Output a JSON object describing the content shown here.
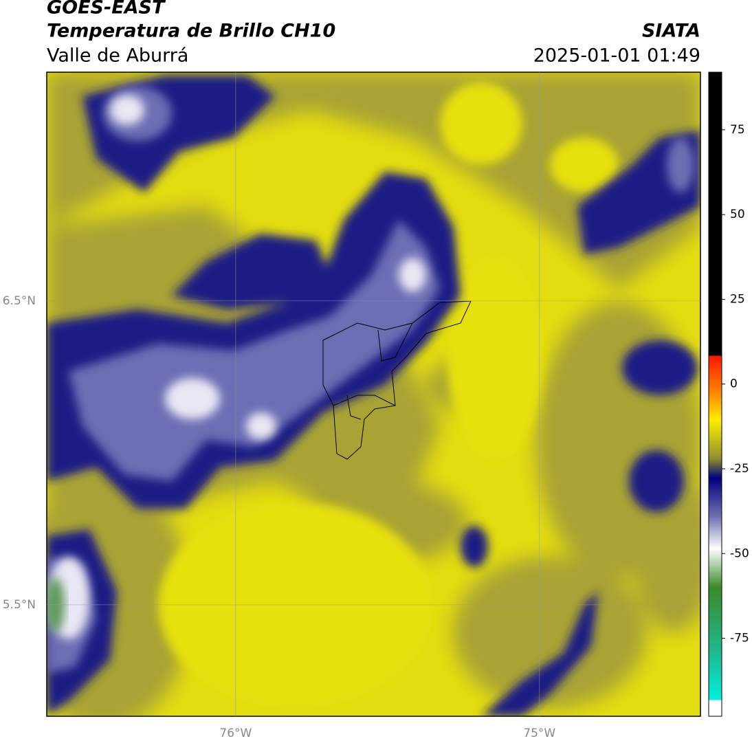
{
  "header": {
    "title": "GOES-EAST",
    "subtitle": "Temperatura de Brillo CH10",
    "region": "Valle de Aburrá",
    "source": "SIATA",
    "datetime": "2025-01-01 01:49"
  },
  "map": {
    "lat_lim": [
      5.133,
      7.253
    ],
    "lon_lim": [
      -76.622,
      -74.47
    ],
    "lat_ticks": [
      {
        "value": 6.5,
        "label": "6.5°N"
      },
      {
        "value": 5.5,
        "label": "5.5°N"
      }
    ],
    "lon_ticks": [
      {
        "value": -76,
        "label": "76°W"
      },
      {
        "value": -75,
        "label": "75°W"
      }
    ]
  },
  "colorbar": {
    "lim": [
      -98,
      92
    ],
    "ticks": [
      75,
      50,
      25,
      0,
      -25,
      -50,
      -75
    ]
  }
}
